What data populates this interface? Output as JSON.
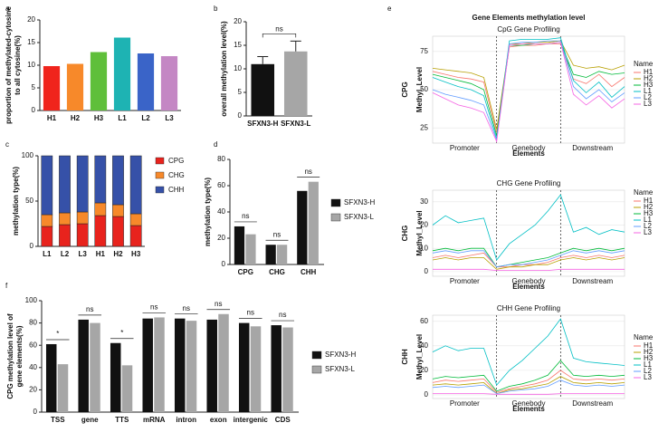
{
  "chart_data": [
    {
      "type": "bar",
      "panel_label": "a",
      "ylabel": [
        "proportion of methylated-cytosine",
        "to all cytosine(%)"
      ],
      "categories": [
        "H1",
        "H2",
        "H3",
        "L1",
        "L2",
        "L3"
      ],
      "values": [
        9.8,
        10.3,
        12.9,
        16.1,
        12.6,
        12.0
      ],
      "colors": [
        "#f0241c",
        "#f7892a",
        "#5fbf3a",
        "#1eb3b3",
        "#3a64c8",
        "#c487c4"
      ],
      "ylim": [
        0,
        20
      ],
      "yticks": [
        0,
        5,
        10,
        15,
        20
      ]
    },
    {
      "type": "bar",
      "panel_label": "b",
      "ylabel": [
        "overall methylation level(%)"
      ],
      "categories": [
        "SFXN3-H",
        "SFXN3-L"
      ],
      "values": [
        11.0,
        13.7
      ],
      "errors": [
        1.6,
        2.2
      ],
      "colors": [
        "#111111",
        "#a6a6a6"
      ],
      "annotation": "ns",
      "ylim": [
        0,
        20
      ],
      "yticks": [
        0,
        5,
        10,
        15,
        20
      ]
    },
    {
      "type": "stacked_bar",
      "panel_label": "c",
      "ylabel": [
        "methylation type(%)"
      ],
      "categories": [
        "L1",
        "L2",
        "L3",
        "H1",
        "H2",
        "H3"
      ],
      "series": [
        {
          "name": "CPG",
          "color": "#e8231d",
          "values": [
            22,
            24,
            25,
            34,
            33,
            23
          ]
        },
        {
          "name": "CHG",
          "color": "#f7892a",
          "values": [
            13,
            13,
            13,
            14,
            13,
            13
          ]
        },
        {
          "name": "CHH",
          "color": "#3651a8",
          "values": [
            65,
            63,
            62,
            52,
            54,
            64
          ]
        }
      ],
      "ylim": [
        0,
        100
      ],
      "yticks": [
        0,
        50,
        100
      ]
    },
    {
      "type": "grouped_bar",
      "panel_label": "d",
      "ylabel": [
        "methylation type(%)"
      ],
      "categories": [
        "CPG",
        "CHG",
        "CHH"
      ],
      "series": [
        {
          "name": "SFXN3-H",
          "color": "#111111",
          "values": [
            29,
            15,
            56
          ]
        },
        {
          "name": "SFXN3-L",
          "color": "#a6a6a6",
          "values": [
            23,
            15,
            63
          ]
        }
      ],
      "annotations": [
        "ns",
        "ns",
        "ns"
      ],
      "ylim": [
        0,
        80
      ],
      "yticks": [
        0,
        20,
        40,
        60,
        80
      ]
    },
    {
      "type": "line",
      "panel_label": "e",
      "suptitle": "Gene Elements methylation level",
      "title": "CpG Gene Profiling",
      "row_label": "CPG",
      "ylabel": [
        "Methyl_Level"
      ],
      "xlabel": "Elements",
      "region_labels": [
        "Promoter",
        "Genebody",
        "Downstream"
      ],
      "legend_title": "Name",
      "grid": true,
      "vlines": [
        5,
        10
      ],
      "x": [
        0,
        1,
        2,
        3,
        4,
        5,
        6,
        7,
        8,
        9,
        10,
        11,
        12,
        13,
        14,
        15
      ],
      "xlim": [
        0,
        15
      ],
      "ylim": [
        15,
        85
      ],
      "yticks": [
        25,
        50,
        75
      ],
      "series": [
        {
          "name": "H1",
          "color": "#f8766d",
          "values": [
            62,
            60,
            58,
            57,
            55,
            22,
            78,
            79,
            79,
            80,
            80,
            57,
            54,
            60,
            52,
            58
          ]
        },
        {
          "name": "H2",
          "color": "#b79f00",
          "values": [
            64,
            63,
            62,
            61,
            58,
            24,
            80,
            80,
            81,
            81,
            82,
            66,
            64,
            65,
            63,
            66
          ]
        },
        {
          "name": "H3",
          "color": "#00ba38",
          "values": [
            60,
            58,
            56,
            54,
            50,
            20,
            79,
            79,
            80,
            80,
            81,
            60,
            58,
            62,
            60,
            61
          ]
        },
        {
          "name": "L1",
          "color": "#00bfc4",
          "values": [
            58,
            55,
            52,
            50,
            46,
            18,
            82,
            83,
            83,
            83,
            84,
            56,
            48,
            55,
            45,
            52
          ]
        },
        {
          "name": "L2",
          "color": "#619cff",
          "values": [
            50,
            47,
            45,
            43,
            40,
            17,
            80,
            81,
            81,
            82,
            82,
            52,
            44,
            50,
            42,
            48
          ]
        },
        {
          "name": "L3",
          "color": "#f564e3",
          "values": [
            48,
            44,
            40,
            38,
            35,
            16,
            79,
            80,
            80,
            80,
            81,
            47,
            40,
            46,
            38,
            44
          ]
        }
      ]
    },
    {
      "type": "line",
      "title": "CHG Gene Profiling",
      "row_label": "CHG",
      "ylabel": [
        "Methyl_Level"
      ],
      "xlabel": "Elements",
      "region_labels": [
        "Promoter",
        "Genebody",
        "Downstream"
      ],
      "legend_title": "Name",
      "grid": true,
      "vlines": [
        5,
        10
      ],
      "x": [
        0,
        1,
        2,
        3,
        4,
        5,
        6,
        7,
        8,
        9,
        10,
        11,
        12,
        13,
        14,
        15
      ],
      "xlim": [
        0,
        15
      ],
      "ylim": [
        -2,
        35
      ],
      "yticks": [
        0,
        10,
        20,
        30
      ],
      "series": [
        {
          "name": "H1",
          "color": "#f8766d",
          "values": [
            6,
            7,
            6,
            7,
            8,
            2,
            2,
            3,
            3,
            4,
            6,
            7,
            6,
            7,
            6,
            7
          ]
        },
        {
          "name": "H2",
          "color": "#b79f00",
          "values": [
            5,
            6,
            5,
            6,
            6,
            1,
            2,
            2,
            3,
            3,
            5,
            6,
            5,
            6,
            5,
            6
          ]
        },
        {
          "name": "H3",
          "color": "#00ba38",
          "values": [
            9,
            10,
            9,
            10,
            10,
            2,
            3,
            4,
            5,
            6,
            8,
            10,
            9,
            10,
            9,
            10
          ]
        },
        {
          "name": "L1",
          "color": "#00bfc4",
          "values": [
            20,
            24,
            21,
            22,
            23,
            5,
            12,
            16,
            20,
            26,
            33,
            17,
            19,
            16,
            18,
            17
          ]
        },
        {
          "name": "L2",
          "color": "#619cff",
          "values": [
            8,
            9,
            8,
            9,
            9,
            2,
            3,
            3,
            4,
            5,
            7,
            9,
            8,
            9,
            8,
            9
          ]
        },
        {
          "name": "L3",
          "color": "#f564e3",
          "values": [
            1,
            1,
            1,
            1,
            1,
            0.5,
            0.5,
            0.5,
            0.5,
            0.5,
            1,
            1,
            1,
            1,
            1,
            1
          ]
        }
      ]
    },
    {
      "type": "line",
      "title": "CHH Gene Profiling",
      "row_label": "CHH",
      "ylabel": [
        "Methyl_Level"
      ],
      "xlabel": "Elements",
      "region_labels": [
        "Promoter",
        "Genebody",
        "Downstream"
      ],
      "legend_title": "Name",
      "grid": true,
      "vlines": [
        5,
        10
      ],
      "x": [
        0,
        1,
        2,
        3,
        4,
        5,
        6,
        7,
        8,
        9,
        10,
        11,
        12,
        13,
        14,
        15
      ],
      "xlim": [
        0,
        15
      ],
      "ylim": [
        -3,
        65
      ],
      "yticks": [
        0,
        20,
        40,
        60
      ],
      "series": [
        {
          "name": "H1",
          "color": "#f8766d",
          "values": [
            10,
            12,
            11,
            12,
            13,
            2,
            5,
            7,
            9,
            12,
            20,
            13,
            12,
            13,
            12,
            13
          ]
        },
        {
          "name": "H2",
          "color": "#b79f00",
          "values": [
            8,
            9,
            8,
            9,
            10,
            1,
            4,
            5,
            7,
            9,
            15,
            10,
            9,
            10,
            9,
            10
          ]
        },
        {
          "name": "H3",
          "color": "#00ba38",
          "values": [
            13,
            15,
            14,
            15,
            16,
            3,
            7,
            9,
            12,
            16,
            28,
            16,
            15,
            16,
            15,
            16
          ]
        },
        {
          "name": "L1",
          "color": "#00bfc4",
          "values": [
            35,
            40,
            36,
            38,
            38,
            8,
            20,
            28,
            38,
            48,
            62,
            30,
            27,
            26,
            25,
            24
          ]
        },
        {
          "name": "L2",
          "color": "#619cff",
          "values": [
            6,
            7,
            6,
            7,
            8,
            1,
            3,
            4,
            5,
            7,
            12,
            8,
            7,
            8,
            7,
            8
          ]
        },
        {
          "name": "L3",
          "color": "#f564e3",
          "values": [
            1,
            1,
            1,
            1,
            1,
            0.5,
            0.5,
            0.5,
            0.5,
            0.5,
            1,
            1,
            1,
            1,
            1,
            1
          ]
        }
      ]
    },
    {
      "type": "grouped_bar",
      "panel_label": "f",
      "ylabel": [
        "CPG methylation level of",
        "gene elements(%)"
      ],
      "categories": [
        "TSS",
        "gene",
        "TTS",
        "mRNA",
        "intron",
        "exon",
        "intergenic",
        "CDS"
      ],
      "series": [
        {
          "name": "SFXN3-H",
          "color": "#111111",
          "values": [
            61,
            83,
            62,
            84,
            84,
            83,
            80,
            78
          ]
        },
        {
          "name": "SFXN3-L",
          "color": "#a6a6a6",
          "values": [
            43,
            80,
            42,
            85,
            82,
            88,
            77,
            76
          ]
        }
      ],
      "annotations": [
        "*",
        "ns",
        "*",
        "ns",
        "ns",
        "ns",
        "ns",
        "ns"
      ],
      "ylim": [
        0,
        100
      ],
      "yticks": [
        0,
        20,
        40,
        60,
        80,
        100
      ]
    }
  ]
}
